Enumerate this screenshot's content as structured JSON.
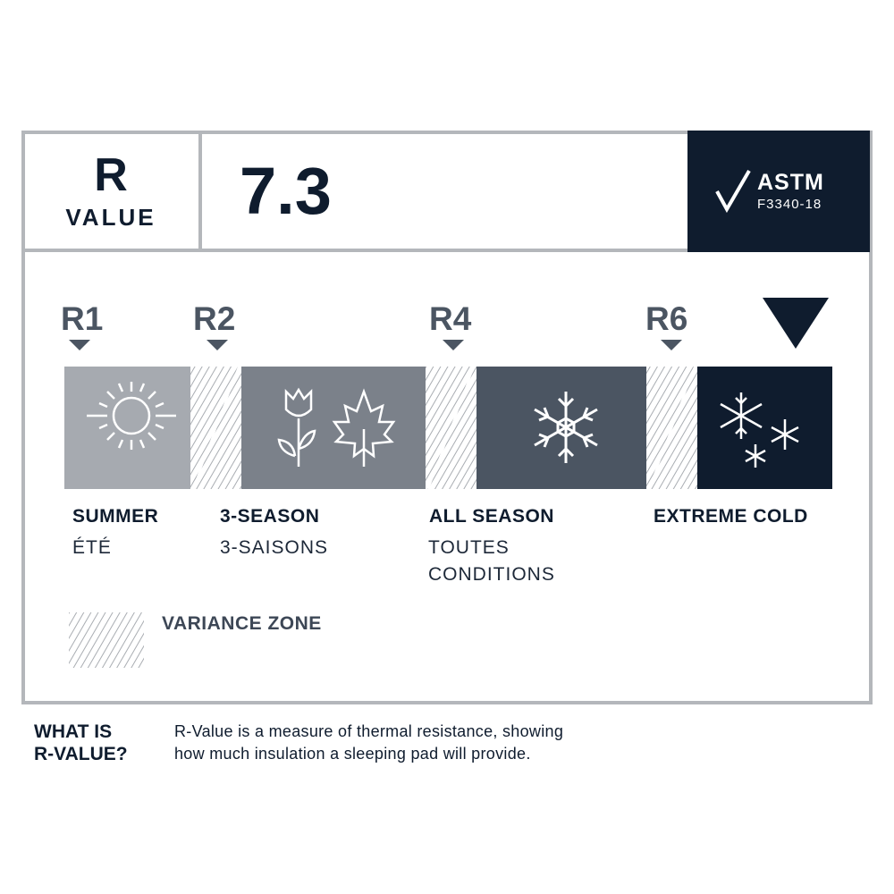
{
  "header": {
    "r_letter": "R",
    "value_label": "VALUE",
    "rating": "7.3",
    "certification": {
      "title": "ASTM",
      "code": "F3340-18",
      "icon": "check-icon"
    }
  },
  "scale": {
    "markers": [
      "R1",
      "R2",
      "R4",
      "R6"
    ],
    "current_indicator_icon": "triangle-down-icon",
    "segments": [
      {
        "en": "SUMMER",
        "fr": "ÉTÉ",
        "fr2": "",
        "icon": "sun-icon",
        "color": "#a6aab0"
      },
      {
        "en": "3-SEASON",
        "fr": "3-SAISONS",
        "fr2": "",
        "icon": "flower-maple-leaf-icon",
        "color": "#7b818a"
      },
      {
        "en": "ALL SEASON",
        "fr": "TOUTES",
        "fr2": "CONDITIONS",
        "icon": "snowflake-icon",
        "color": "#4b5562"
      },
      {
        "en": "EXTREME COLD",
        "fr": "",
        "fr2": "",
        "icon": "snowflakes-icon",
        "color": "#0f1c2e"
      }
    ]
  },
  "legend": {
    "variance_label": "VARIANCE ZONE"
  },
  "footer": {
    "question_line1": "WHAT IS",
    "question_line2": "R-VALUE?",
    "answer_line1": "R-Value is a measure of thermal resistance, showing",
    "answer_line2": "how much insulation a sleeping pad will provide."
  },
  "colors": {
    "navy": "#0f1c2e",
    "border": "#b4b7bb",
    "marker": "#4b5562"
  }
}
